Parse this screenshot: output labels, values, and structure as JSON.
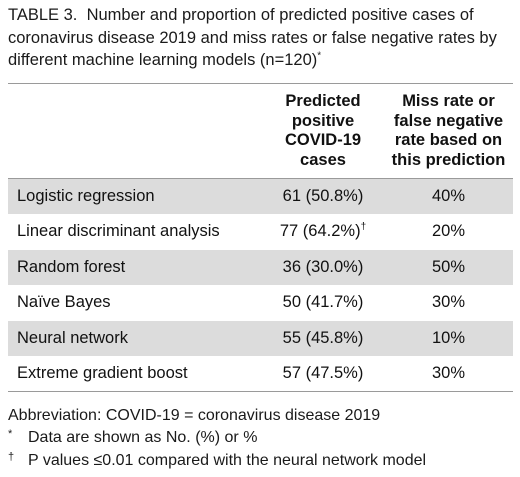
{
  "caption": {
    "label": "TABLE 3.",
    "text": "Number and proportion of predicted positive cases of coronavirus disease 2019 and miss rates or false negative rates by different machine learning models (n=120)",
    "marker": "*"
  },
  "table": {
    "headers": [
      "",
      "Predicted positive COVID-19 cases",
      "Miss rate or false negative rate based on this prediction"
    ],
    "rows": [
      {
        "model": "Logistic regression",
        "predicted": "61 (50.8%)",
        "mark": "",
        "miss_rate": "40%"
      },
      {
        "model": "Linear discriminant analysis",
        "predicted": "77 (64.2%)",
        "mark": "†",
        "miss_rate": "20%"
      },
      {
        "model": "Random forest",
        "predicted": "36 (30.0%)",
        "mark": "",
        "miss_rate": "50%"
      },
      {
        "model": "Naïve Bayes",
        "predicted": "50 (41.7%)",
        "mark": "",
        "miss_rate": "30%"
      },
      {
        "model": "Neural network",
        "predicted": "55 (45.8%)",
        "mark": "",
        "miss_rate": "10%"
      },
      {
        "model": "Extreme gradient boost",
        "predicted": "57 (47.5%)",
        "mark": "",
        "miss_rate": "30%"
      }
    ]
  },
  "footnotes": {
    "abbreviation": "Abbreviation: COVID-19 = coronavirus disease 2019",
    "notes": [
      {
        "mark": "*",
        "text": "Data are shown as No. (%) or %"
      },
      {
        "mark": "†",
        "text": "P values ≤0.01 compared with the neural network model"
      }
    ]
  }
}
